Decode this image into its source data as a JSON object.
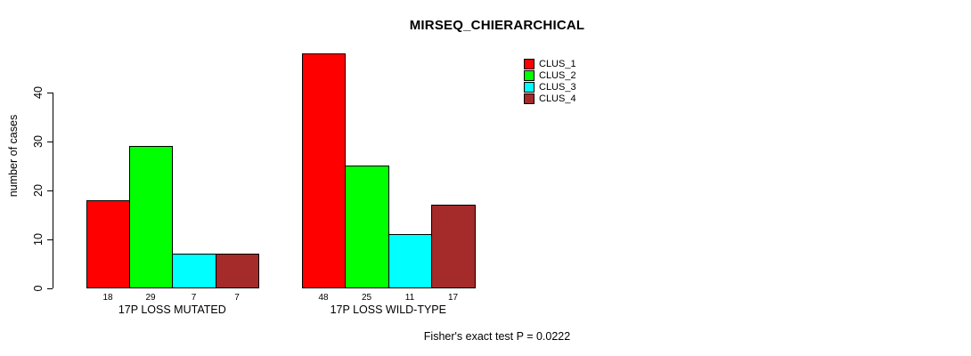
{
  "chart_data": {
    "type": "bar",
    "title": "MIRSEQ_CHIERARCHICAL",
    "ylabel": "number of cases",
    "xlabel": "",
    "categories": [
      "17P LOSS MUTATED",
      "17P LOSS WILD-TYPE"
    ],
    "series": [
      {
        "name": "CLUS_1",
        "color": "#ff0000",
        "values": [
          18,
          48
        ]
      },
      {
        "name": "CLUS_2",
        "color": "#00ff00",
        "values": [
          29,
          25
        ]
      },
      {
        "name": "CLUS_3",
        "color": "#00ffff",
        "values": [
          7,
          11
        ]
      },
      {
        "name": "CLUS_4",
        "color": "#a52a2a",
        "values": [
          7,
          17
        ]
      }
    ],
    "bar_value_labels": true,
    "yticks": [
      0,
      10,
      20,
      30,
      40
    ],
    "ylim": [
      0,
      48
    ],
    "grid": false,
    "legend_position": "top-right",
    "bar_border_color": "#000000",
    "background": "#ffffff",
    "annotation": "Fisher's exact test P = 0.0222"
  }
}
